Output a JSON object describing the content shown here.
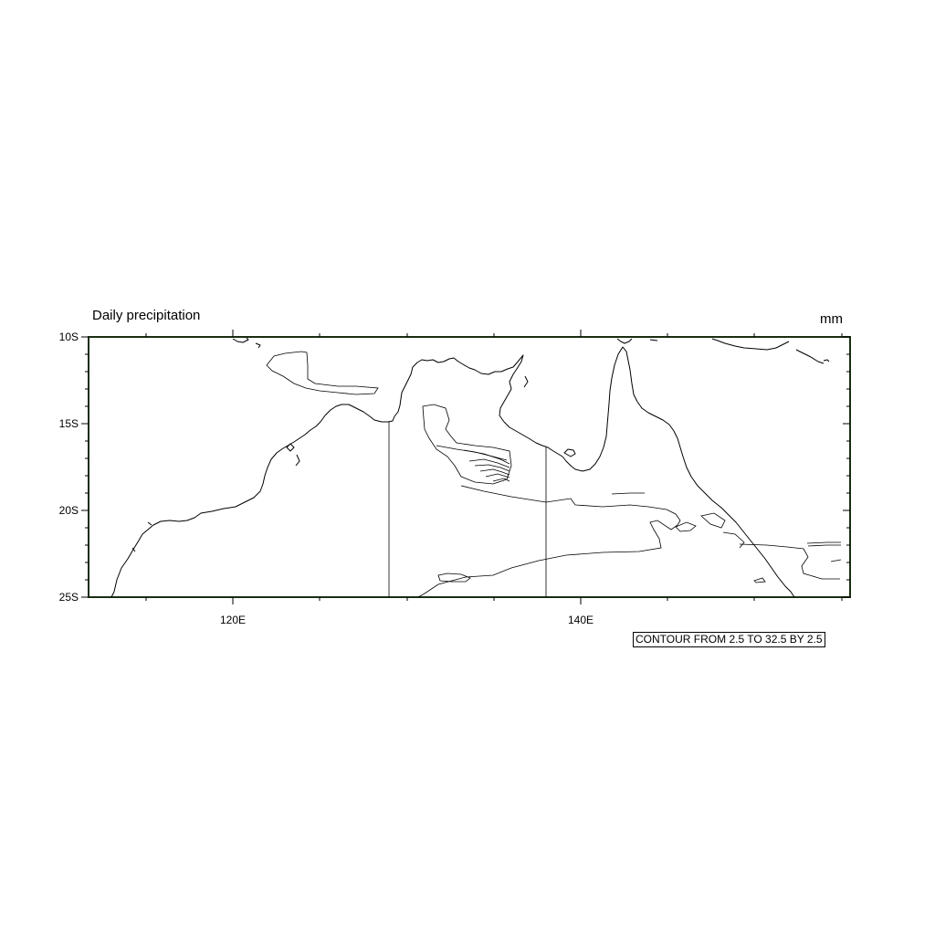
{
  "title": "Daily precipitation",
  "units": "mm",
  "contour_info": "CONTOUR FROM 2.5 TO 32.5 BY 2.5",
  "map": {
    "projection": "cylindrical equidistant",
    "lon_range": [
      112,
      155
    ],
    "lat_range": [
      -25,
      -10
    ]
  },
  "axes": {
    "lat_ticks": [
      "10S",
      "15S",
      "20S",
      "25S"
    ],
    "lon_ticks": [
      "120E",
      "140E"
    ]
  },
  "contours": {
    "min": 2.5,
    "max": 32.5,
    "interval": 2.5,
    "line_color": "#000000"
  },
  "colors": {
    "frame": "#1a2e12",
    "coastline": "#000000"
  }
}
